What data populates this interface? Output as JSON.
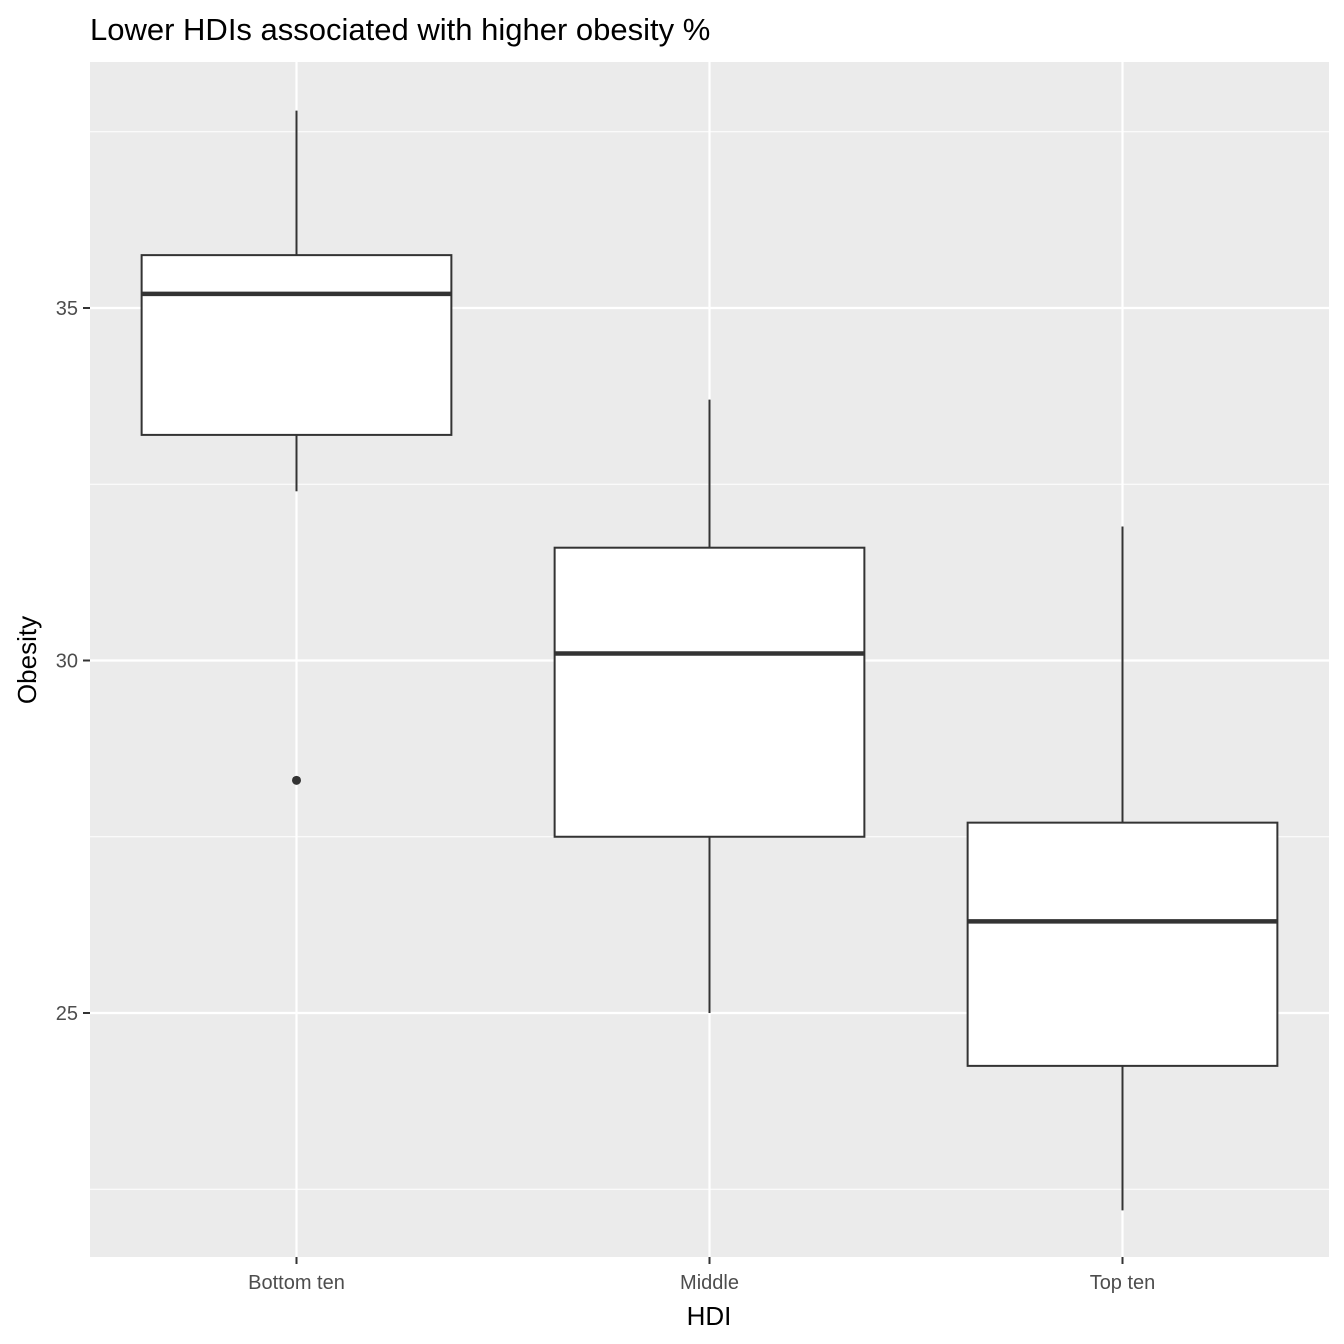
{
  "chart_data": {
    "type": "boxplot",
    "title": "Lower HDIs associated with higher obesity %",
    "xlabel": "HDI",
    "ylabel": "Obesity",
    "categories": [
      "Bottom ten",
      "Middle",
      "Top ten"
    ],
    "y_ticks": [
      {
        "value": 25,
        "label": "25"
      },
      {
        "value": 30,
        "label": "30"
      },
      {
        "value": 35,
        "label": "35"
      }
    ],
    "ylim": [
      21.5,
      38.5
    ],
    "boxes": [
      {
        "category": "Bottom ten",
        "whisker_low": 32.4,
        "q1": 33.2,
        "median": 35.2,
        "q3": 35.75,
        "whisker_high": 37.8,
        "outliers": [
          28.3
        ]
      },
      {
        "category": "Middle",
        "whisker_low": 25.0,
        "q1": 27.5,
        "median": 30.1,
        "q3": 31.6,
        "whisker_high": 33.7,
        "outliers": []
      },
      {
        "category": "Top ten",
        "whisker_low": 22.2,
        "q1": 24.25,
        "median": 26.3,
        "q3": 27.7,
        "whisker_high": 31.9,
        "outliers": []
      }
    ],
    "grid": true,
    "legend": "none",
    "colors": {
      "panel_background": "#ebebeb",
      "grid_line": "#ffffff",
      "box_fill": "#ffffff",
      "box_stroke": "#333333",
      "tick_label": "#4d4d4d"
    }
  }
}
